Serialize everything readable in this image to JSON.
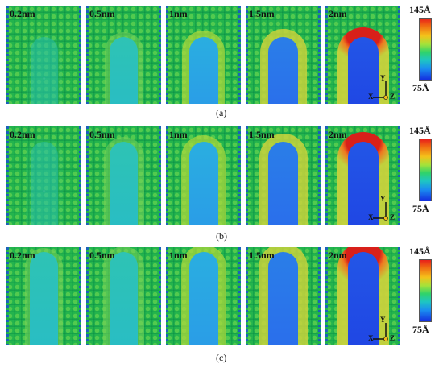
{
  "rows": [
    {
      "caption": "(a)",
      "panels": [
        {
          "label": "0.2nm",
          "level": 0.0
        },
        {
          "label": "0.5nm",
          "level": 0.2
        },
        {
          "label": "1nm",
          "level": 0.45
        },
        {
          "label": "1.5nm",
          "level": 0.7
        },
        {
          "label": "2nm",
          "level": 1.0
        }
      ]
    },
    {
      "caption": "(b)",
      "panels": [
        {
          "label": "0.2nm",
          "level": 0.1
        },
        {
          "label": "0.5nm",
          "level": 0.3
        },
        {
          "label": "1nm",
          "level": 0.55
        },
        {
          "label": "1.5nm",
          "level": 0.8
        },
        {
          "label": "2nm",
          "level": 1.0
        }
      ]
    },
    {
      "caption": "(c)",
      "panels": [
        {
          "label": "0.2nm",
          "level": 0.15
        },
        {
          "label": "0.5nm",
          "level": 0.35
        },
        {
          "label": "1nm",
          "level": 0.6
        },
        {
          "label": "1.5nm",
          "level": 0.85
        },
        {
          "label": "2nm",
          "level": 1.0
        }
      ]
    }
  ],
  "axes": {
    "y": "Y",
    "x": "X",
    "z": "Z"
  },
  "colorbar": {
    "max_label": "145Å",
    "min_label": "75Å"
  }
}
